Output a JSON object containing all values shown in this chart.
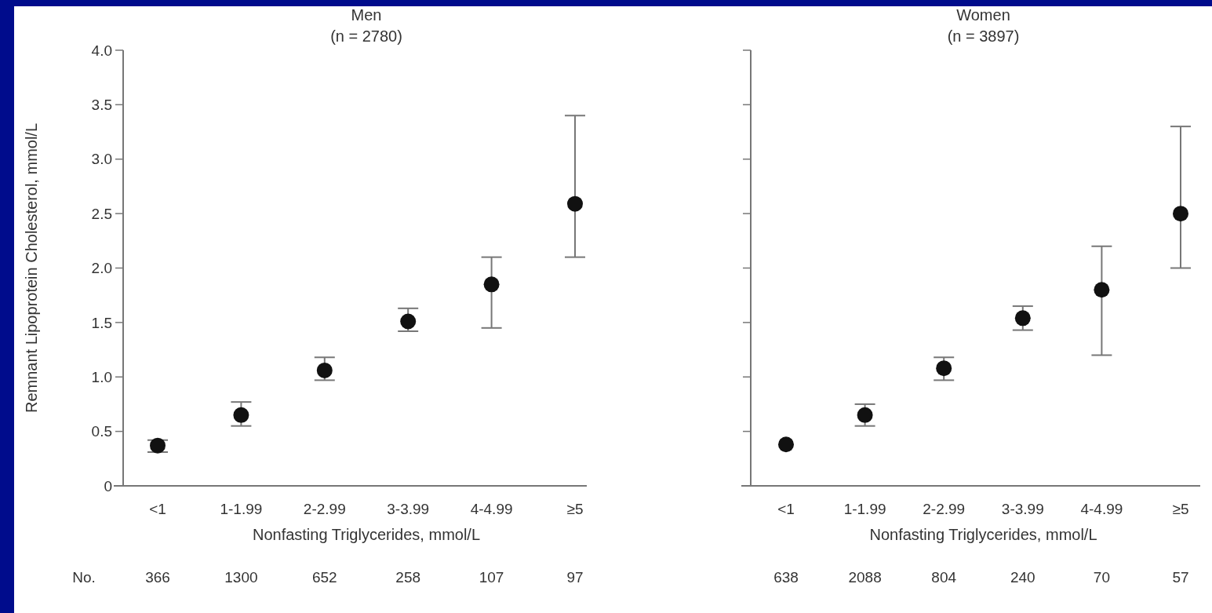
{
  "chart_data": [
    {
      "type": "scatter",
      "title": "Men",
      "subtitle": "(n = 2780)",
      "xlabel": "Nonfasting Triglycerides, mmol/L",
      "ylabel": "Remnant Lipoprotein Cholesterol, mmol/L",
      "categories": [
        "<1",
        "1-1.99",
        "2-2.99",
        "3-3.99",
        "4-4.99",
        "≥5"
      ],
      "series": [
        {
          "color": "#111111",
          "values": [
            0.37,
            0.65,
            1.06,
            1.51,
            1.85,
            2.59
          ],
          "errors": [
            [
              0.31,
              0.42
            ],
            [
              0.55,
              0.77
            ],
            [
              0.97,
              1.18
            ],
            [
              1.42,
              1.63
            ],
            [
              1.45,
              2.1
            ],
            [
              2.1,
              3.4
            ]
          ]
        }
      ],
      "ylim": [
        0,
        4
      ],
      "yticks": [
        0,
        {
          "value": 0.5,
          "label": "0.5"
        },
        {
          "value": 1,
          "label": "1.0"
        },
        {
          "value": 1.5,
          "label": "1.5"
        },
        {
          "value": 2,
          "label": "2.0"
        },
        {
          "value": 2.5,
          "label": "2.5"
        },
        {
          "value": 3,
          "label": "3.0"
        },
        {
          "value": 3.5,
          "label": "3.5"
        },
        {
          "value": 4,
          "label": "4.0"
        }
      ],
      "marker": "circle",
      "annotations": [
        "No.",
        "366",
        "1300",
        "652",
        "258",
        "107",
        "97"
      ]
    },
    {
      "type": "scatter",
      "title": "Women",
      "subtitle": "(n = 3897)",
      "xlabel": "Nonfasting Triglycerides, mmol/L",
      "categories": [
        "<1",
        "1-1.99",
        "2-2.99",
        "3-3.99",
        "4-4.99",
        "≥5"
      ],
      "series": [
        {
          "color": "#111111",
          "values": [
            0.38,
            0.65,
            1.08,
            1.54,
            1.8,
            2.5
          ],
          "errors": [
            null,
            [
              0.55,
              0.75
            ],
            [
              0.97,
              1.18
            ],
            [
              1.43,
              1.65
            ],
            [
              1.2,
              2.2
            ],
            [
              2.0,
              3.3
            ]
          ]
        }
      ],
      "ylim": [
        0,
        4
      ],
      "yticks": [
        {
          "value": 0,
          "label": null
        },
        {
          "value": 0.5,
          "label": null
        },
        {
          "value": 1,
          "label": null
        },
        {
          "value": 1.5,
          "label": null
        },
        {
          "value": 2,
          "label": null
        },
        {
          "value": 2.5,
          "label": null
        },
        {
          "value": 3,
          "label": null
        },
        {
          "value": 3.5,
          "label": null
        },
        {
          "value": 4,
          "label": null
        }
      ],
      "tick_labels": "x",
      "marker": "circle",
      "annotations": [
        "638",
        "2088",
        "804",
        "240",
        "70",
        "57"
      ]
    }
  ]
}
